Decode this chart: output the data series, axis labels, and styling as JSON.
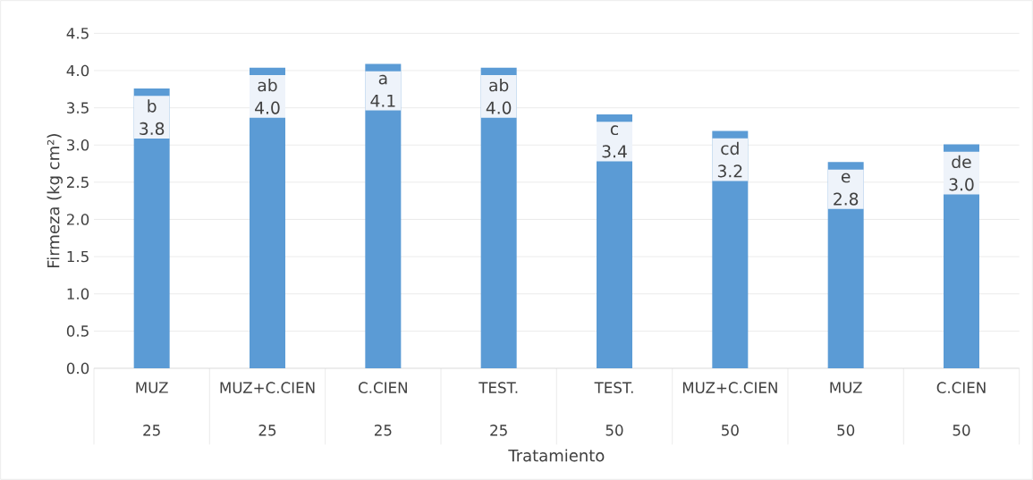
{
  "chart_data": {
    "type": "bar",
    "xlabel": "Tratamiento",
    "ylabel": "Firmeza (kg cm²)",
    "categories": [
      "MUZ",
      "MUZ+C.CIEN",
      "C.CIEN",
      "TEST.",
      "TEST.",
      "MUZ+C.CIEN",
      "MUZ",
      "C.CIEN"
    ],
    "values": [
      3.76,
      4.04,
      4.09,
      4.04,
      3.41,
      3.19,
      2.77,
      3.01
    ],
    "value_labels": [
      "3.8",
      "4.0",
      "4.1",
      "4.0",
      "3.4",
      "3.2",
      "2.8",
      "3.0"
    ],
    "color": "#5b9bd5",
    "ylim": [
      0,
      4.5
    ],
    "yticks": [
      {
        "value": 0,
        "label": "0.0"
      },
      {
        "value": 0.5,
        "label": "0.5"
      },
      {
        "value": 1,
        "label": "1.0"
      },
      {
        "value": 1.5,
        "label": "1.5"
      },
      {
        "value": 2,
        "label": "2.0"
      },
      {
        "value": 2.5,
        "label": "2.5"
      },
      {
        "value": 3,
        "label": "3.0"
      },
      {
        "value": 3.5,
        "label": "3.5"
      },
      {
        "value": 4,
        "label": "4.0"
      },
      {
        "value": 4.5,
        "label": "4.5"
      }
    ],
    "grid": "y",
    "annotations": [
      "b",
      "ab",
      "a",
      "ab",
      "c",
      "cd",
      "e",
      "de",
      "25",
      "25",
      "25",
      "25",
      "50",
      "50",
      "50",
      "50"
    ]
  }
}
